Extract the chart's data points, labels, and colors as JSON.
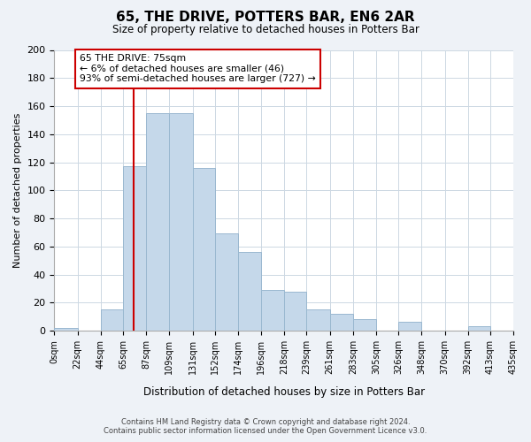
{
  "title": "65, THE DRIVE, POTTERS BAR, EN6 2AR",
  "subtitle": "Size of property relative to detached houses in Potters Bar",
  "xlabel": "Distribution of detached houses by size in Potters Bar",
  "ylabel": "Number of detached properties",
  "bin_labels": [
    "0sqm",
    "22sqm",
    "44sqm",
    "65sqm",
    "87sqm",
    "109sqm",
    "131sqm",
    "152sqm",
    "174sqm",
    "196sqm",
    "218sqm",
    "239sqm",
    "261sqm",
    "283sqm",
    "305sqm",
    "326sqm",
    "348sqm",
    "370sqm",
    "392sqm",
    "413sqm",
    "435sqm"
  ],
  "bar_values": [
    2,
    0,
    15,
    117,
    155,
    155,
    116,
    69,
    56,
    29,
    28,
    15,
    12,
    8,
    0,
    6,
    0,
    0,
    3,
    0
  ],
  "bar_color": "#c5d8ea",
  "bar_edge_color": "#9ab8d0",
  "vertical_line_x": 75,
  "vertical_line_label": "65 THE DRIVE: 75sqm",
  "annotation_line1": "← 6% of detached houses are smaller (46)",
  "annotation_line2": "93% of semi-detached houses are larger (727) →",
  "annotation_box_color": "#ffffff",
  "annotation_box_edge": "#cc0000",
  "vline_color": "#cc0000",
  "ylim": [
    0,
    200
  ],
  "yticks": [
    0,
    20,
    40,
    60,
    80,
    100,
    120,
    140,
    160,
    180,
    200
  ],
  "bin_edges": [
    0,
    22,
    44,
    65,
    87,
    109,
    131,
    152,
    174,
    196,
    218,
    239,
    261,
    283,
    305,
    326,
    348,
    370,
    392,
    413,
    435
  ],
  "footer_line1": "Contains HM Land Registry data © Crown copyright and database right 2024.",
  "footer_line2": "Contains public sector information licensed under the Open Government Licence v3.0.",
  "background_color": "#eef2f7",
  "plot_bg_color": "#ffffff"
}
